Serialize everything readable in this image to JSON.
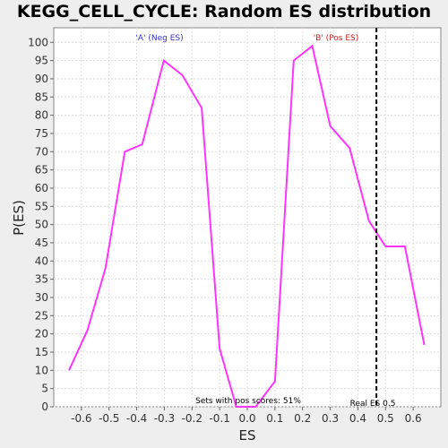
{
  "chart_data": {
    "type": "line",
    "title": "KEGG_CELL_CYCLE: Random ES distribution",
    "xlabel": "ES",
    "ylabel": "P(ES)",
    "xlim": [
      -0.7,
      0.7
    ],
    "ylim": [
      0,
      104
    ],
    "xticks": [
      "-0.6",
      "-0.5",
      "-0.4",
      "-0.3",
      "-0.2",
      "-0.1",
      "0.0",
      "0.1",
      "0.2",
      "0.3",
      "0.4",
      "0.5",
      "0.6"
    ],
    "yticks": [
      "0",
      "5",
      "10",
      "15",
      "20",
      "25",
      "30",
      "35",
      "40",
      "45",
      "50",
      "55",
      "60",
      "65",
      "70",
      "75",
      "80",
      "85",
      "90",
      "95",
      "100"
    ],
    "grid": true,
    "series": [
      {
        "color": "#ff33ff",
        "x": [
          -0.645,
          -0.578,
          -0.513,
          -0.443,
          -0.38,
          -0.302,
          -0.235,
          -0.165,
          -0.1,
          -0.04,
          0.03,
          0.1,
          0.168,
          0.235,
          0.3,
          0.37,
          0.44,
          0.5,
          0.57,
          0.64
        ],
        "y": [
          10,
          21,
          38,
          70,
          72,
          95,
          91,
          82,
          16,
          0,
          0,
          7,
          95,
          99,
          77,
          71,
          51,
          44,
          44,
          17
        ]
      }
    ],
    "real_es": {
      "x": 0.467,
      "label": "Real ES 0.5"
    },
    "annotations": [
      {
        "text": "'A' (Neg ES)",
        "color": "#3333cc"
      },
      {
        "text": "'B' (Pos ES)",
        "color": "#cc2222"
      },
      {
        "text": "Sets with pos scores: 51%",
        "color": "#000000"
      }
    ]
  }
}
